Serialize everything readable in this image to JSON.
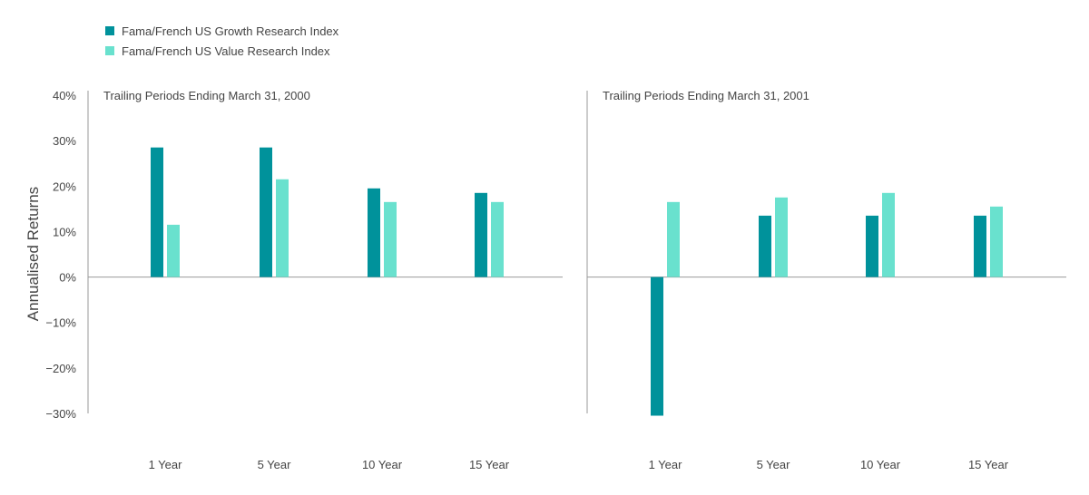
{
  "legend": [
    {
      "name": "Fama/French US Growth Research Index",
      "color": "#00929b"
    },
    {
      "name": "Fama/French US Value Research Index",
      "color": "#69e1ce"
    }
  ],
  "chart_data": {
    "type": "bar",
    "ylabel": "Annualised  Returns",
    "ylim": [
      -30,
      40
    ],
    "yticks": [
      40,
      30,
      20,
      10,
      0,
      -10,
      -20,
      -30
    ],
    "ytick_labels": [
      "40%",
      "30%",
      "20%",
      "10%",
      "0%",
      "−10%",
      "−20%",
      "−30%"
    ],
    "grid": false,
    "legend_position": "top-left",
    "panels": [
      {
        "title": "Trailing Periods Ending March 31, 2000",
        "categories": [
          "1 Year",
          "5 Year",
          "10 Year",
          "15 Year"
        ],
        "series": [
          {
            "name": "Fama/French US Growth Research Index",
            "values": [
              28.5,
              28.5,
              19.5,
              18.5
            ]
          },
          {
            "name": "Fama/French US Value Research Index",
            "values": [
              11.5,
              21.5,
              16.5,
              16.5
            ]
          }
        ]
      },
      {
        "title": "Trailing Periods Ending March 31, 2001",
        "categories": [
          "1 Year",
          "5 Year",
          "10 Year",
          "15 Year"
        ],
        "series": [
          {
            "name": "Fama/French US Growth Research Index",
            "values": [
              -30.5,
              13.5,
              13.5,
              13.5
            ]
          },
          {
            "name": "Fama/French US Value Research Index",
            "values": [
              16.5,
              17.5,
              18.5,
              15.5
            ]
          }
        ]
      }
    ]
  }
}
